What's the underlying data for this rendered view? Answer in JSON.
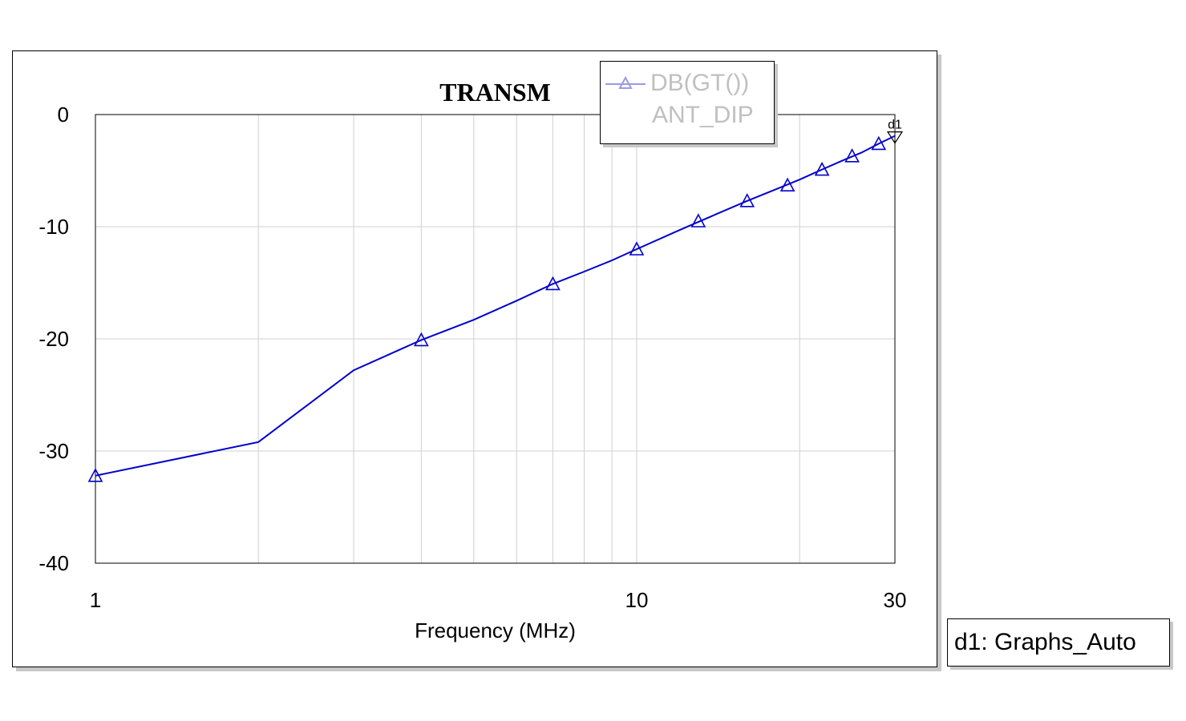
{
  "chart_data": {
    "type": "line",
    "title": "TRANSM",
    "xlabel": "Frequency (MHz)",
    "ylabel": "",
    "x_scale": "log",
    "xlim": [
      1,
      30
    ],
    "ylim": [
      -40,
      0
    ],
    "x_ticks": [
      1,
      10,
      30
    ],
    "x_tick_labels": [
      "1",
      "10",
      "30"
    ],
    "x_gridlines": [
      1,
      2,
      3,
      4,
      5,
      6,
      7,
      8,
      9,
      10,
      20,
      30
    ],
    "y_ticks": [
      0,
      -10,
      -20,
      -30,
      -40
    ],
    "y_tick_labels": [
      "0",
      "-10",
      "-20",
      "-30",
      "-40"
    ],
    "grid": true,
    "legend_position": "top-right",
    "series": [
      {
        "name": "DB(GT())",
        "source": "ANT_DIP",
        "color": "#0000cc",
        "marker": "triangle",
        "x": [
          1,
          2,
          3,
          4,
          5,
          6,
          7,
          8,
          9,
          10,
          12,
          14,
          16,
          18,
          20,
          22,
          24,
          26,
          28,
          30
        ],
        "y": [
          -32.2,
          -29.2,
          -22.8,
          -20.1,
          -18.3,
          -16.6,
          -15.1,
          -14.0,
          -13.0,
          -12.0,
          -10.3,
          -8.9,
          -7.7,
          -6.7,
          -5.8,
          -4.9,
          -4.1,
          -3.4,
          -2.6,
          -1.9
        ],
        "marker_x": [
          1,
          4,
          7,
          10,
          13,
          16,
          19,
          22,
          25,
          28
        ],
        "marker_y": [
          -32.2,
          -20.1,
          -15.1,
          -12.0,
          -9.5,
          -7.7,
          -6.3,
          -4.9,
          -3.7,
          -2.6
        ]
      }
    ],
    "markers": [
      {
        "label": "d1",
        "x": 30,
        "y": -1.9
      }
    ]
  },
  "dataset_label": "d1: Graphs_Auto"
}
